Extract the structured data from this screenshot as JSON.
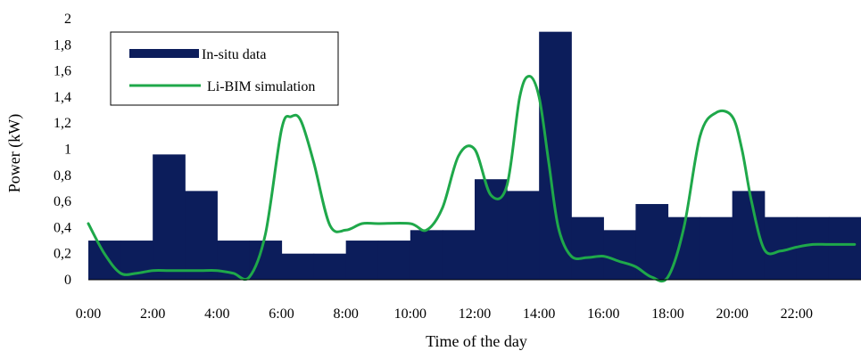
{
  "chart_data": {
    "type": "bar+line",
    "title": "",
    "xlabel": "Time of the day",
    "ylabel": "Power (kW)",
    "ylim": [
      0,
      2
    ],
    "xlim": [
      0,
      24
    ],
    "x_unit": "hours",
    "y_ticks": [
      "0",
      "0,2",
      "0,4",
      "0,6",
      "0,8",
      "1",
      "1,2",
      "1,4",
      "1,6",
      "1,8",
      "2"
    ],
    "x_ticks": [
      "0:00",
      "2:00",
      "4:00",
      "6:00",
      "8:00",
      "10:00",
      "12:00",
      "14:00",
      "16:00",
      "18:00",
      "20:00",
      "22:00"
    ],
    "legend": {
      "position": "top-left",
      "entries": [
        "In-situ data",
        "Li-BIM simulation"
      ]
    },
    "colors": {
      "bars": "#0c1d5b",
      "line": "#1fa84a"
    },
    "grid": false,
    "series": [
      {
        "name": "In-situ data",
        "kind": "step-bar",
        "x": [
          0,
          1,
          2,
          3,
          4,
          5,
          6,
          7,
          8,
          9,
          10,
          11,
          12,
          13,
          14,
          15,
          16,
          17,
          18,
          19,
          20,
          21,
          22,
          23
        ],
        "values": [
          0.3,
          0.3,
          0.96,
          0.68,
          0.3,
          0.3,
          0.2,
          0.2,
          0.3,
          0.3,
          0.38,
          0.38,
          0.77,
          0.68,
          1.9,
          0.48,
          0.38,
          0.58,
          0.48,
          0.48,
          0.68,
          0.48,
          0.48,
          0.48
        ]
      },
      {
        "name": "Li-BIM simulation",
        "kind": "smooth-line",
        "x": [
          0,
          0.5,
          1.0,
          1.5,
          2.0,
          2.5,
          3.0,
          3.5,
          4.0,
          4.5,
          5.0,
          5.5,
          6.0,
          6.3,
          6.6,
          7.0,
          7.5,
          8.0,
          8.5,
          9.0,
          10.0,
          10.5,
          11.0,
          11.5,
          12.0,
          12.5,
          13.0,
          13.4,
          13.7,
          14.0,
          14.3,
          14.6,
          15.0,
          15.5,
          16.0,
          16.5,
          17.0,
          17.5,
          18.0,
          18.5,
          19.0,
          19.5,
          20.0,
          20.3,
          20.6,
          21.0,
          21.5,
          22.0,
          22.5,
          23.0,
          23.8
        ],
        "values": [
          0.43,
          0.2,
          0.05,
          0.05,
          0.07,
          0.07,
          0.07,
          0.07,
          0.07,
          0.05,
          0.02,
          0.35,
          1.15,
          1.25,
          1.22,
          0.9,
          0.42,
          0.38,
          0.43,
          0.43,
          0.43,
          0.38,
          0.55,
          0.95,
          1.0,
          0.65,
          0.72,
          1.4,
          1.56,
          1.4,
          0.9,
          0.4,
          0.18,
          0.17,
          0.18,
          0.14,
          0.1,
          0.02,
          0.02,
          0.4,
          1.1,
          1.28,
          1.25,
          1.0,
          0.6,
          0.23,
          0.22,
          0.25,
          0.27,
          0.27,
          0.27
        ]
      }
    ]
  }
}
